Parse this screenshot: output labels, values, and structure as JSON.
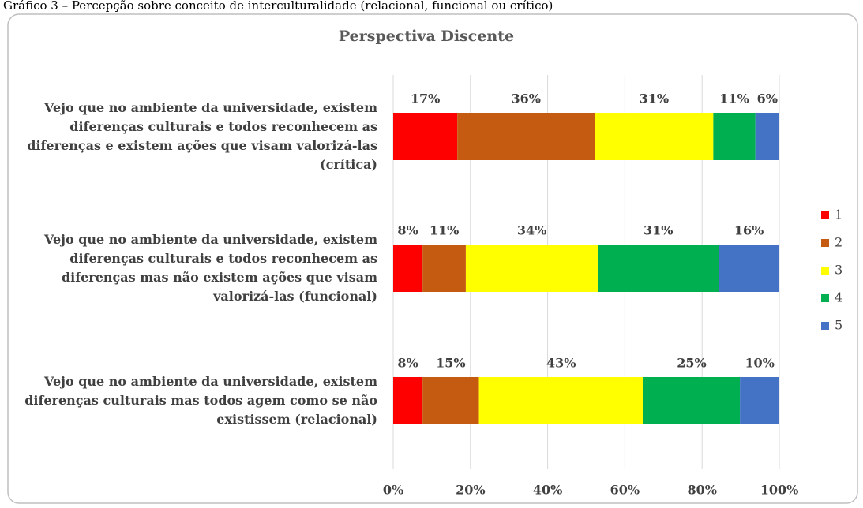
{
  "chart_data": {
    "type": "stacked-bar-horizontal",
    "caption": "Gráfico 3 – Percepção sobre conceito de interculturalidade (relacional, funcional ou crítico)",
    "title": "Perspectiva Discente",
    "categories": [
      "Vejo que no ambiente da universidade, existem diferenças culturais e todos reconhecem as diferenças e existem ações que visam valorizá-las (crítica)",
      "Vejo que no ambiente da universidade, existem diferenças culturais e todos reconhecem as diferenças mas não existem ações que visam valorizá-las (funcional)",
      "Vejo que no ambiente da universidade, existem diferenças culturais mas todos agem como se não existissem (relacional)"
    ],
    "series": [
      {
        "name": "1",
        "color": "#ff0000",
        "values": [
          16.6,
          7.6,
          7.6
        ],
        "value_labels": [
          "17%",
          "8%",
          "8%"
        ]
      },
      {
        "name": "2",
        "color": "#c55a11",
        "values": [
          35.6,
          11.2,
          14.6
        ],
        "value_labels": [
          "36%",
          "11%",
          "15%"
        ]
      },
      {
        "name": "3",
        "color": "#ffff00",
        "values": [
          30.7,
          34.2,
          42.6
        ],
        "value_labels": [
          "31%",
          "34%",
          "43%"
        ]
      },
      {
        "name": "4",
        "color": "#00b050",
        "values": [
          10.9,
          31.3,
          25.0
        ],
        "value_labels": [
          "11%",
          "31%",
          "25%"
        ]
      },
      {
        "name": "5",
        "color": "#4472c4",
        "values": [
          6.2,
          15.7,
          10.2
        ],
        "value_labels": [
          "6%",
          "16%",
          "10%"
        ]
      }
    ],
    "xlim": [
      0,
      100
    ],
    "xticks": [
      {
        "value": 0,
        "label": "0%"
      },
      {
        "value": 20,
        "label": "20%"
      },
      {
        "value": 40,
        "label": "40%"
      },
      {
        "value": 60,
        "label": "60%"
      },
      {
        "value": 80,
        "label": "80%"
      },
      {
        "value": 100,
        "label": "100%"
      }
    ],
    "grid": true,
    "legend": "right"
  }
}
